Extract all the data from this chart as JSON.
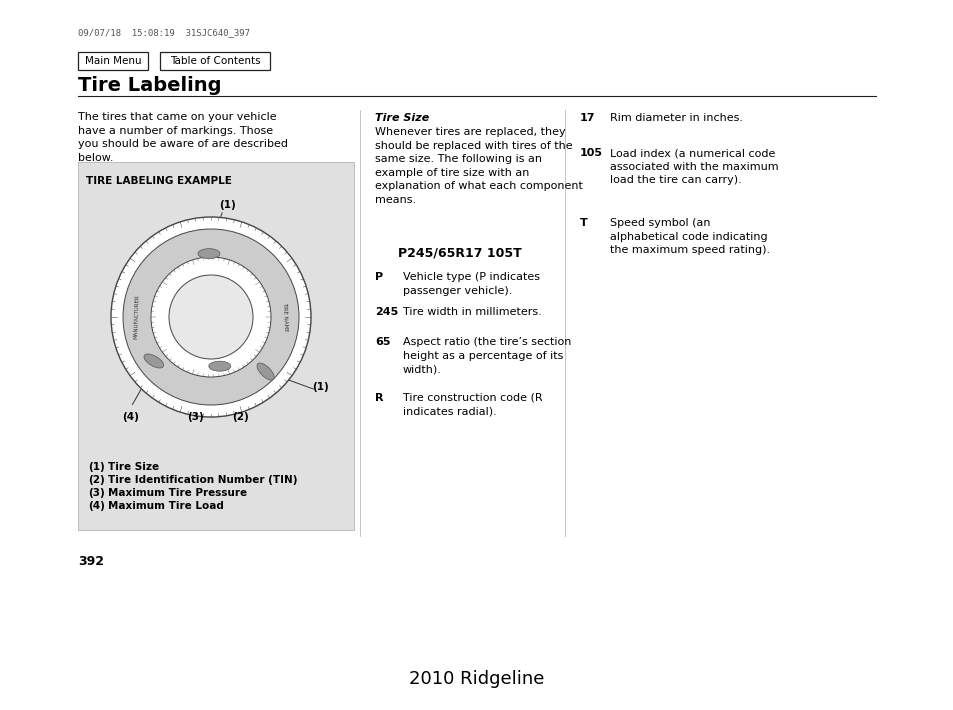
{
  "background_color": "#ffffff",
  "header_text": "09/07/18  15:08:19  31SJC640_397",
  "header_font_size": 7,
  "nav_buttons": [
    "Main Menu",
    "Table of Contents"
  ],
  "section_title": "Tire Labeling",
  "section_title_size": 14,
  "diagram_box_title": "TIRE LABELING EXAMPLE",
  "diagram_bg": "#e0e0e0",
  "left_col_text": "The tires that came on your vehicle\nhave a number of markings. Those\nyou should be aware of are described\nbelow.",
  "col_fontsize": 8.0,
  "legend_items": [
    [
      "(1)",
      "Tire Size"
    ],
    [
      "(2)",
      "Tire Identification Number (TIN)"
    ],
    [
      "(3)",
      "Maximum Tire Pressure"
    ],
    [
      "(4)",
      "Maximum Tire Load"
    ]
  ],
  "mid_col_title": "Tire Size",
  "mid_col_intro": "Whenever tires are replaced, they\nshould be replaced with tires of the\nsame size. The following is an\nexample of tire size with an\nexplanation of what each component\nmeans.",
  "tire_size_example": "P245/65R17 105T",
  "mid_col_items": [
    [
      "P",
      "Vehicle type (P indicates\npassenger vehicle)."
    ],
    [
      "245",
      "Tire width in millimeters."
    ],
    [
      "65",
      "Aspect ratio (the tire’s section\nheight as a percentage of its\nwidth)."
    ],
    [
      "R",
      "Tire construction code (R\nindicates radial)."
    ]
  ],
  "right_col_items": [
    [
      "17",
      "Rim diameter in inches."
    ],
    [
      "105",
      "Load index (a numerical code\nassociated with the maximum\nload the tire can carry)."
    ],
    [
      "T",
      "Speed symbol (an\nalphabetical code indicating\nthe maximum speed rating)."
    ]
  ],
  "page_number": "392",
  "footer_text": "2010 Ridgeline",
  "footer_fontsize": 13,
  "tire_manufacturer_text": "MANUFACTURER",
  "tire_name_text": "TIRE NAME"
}
